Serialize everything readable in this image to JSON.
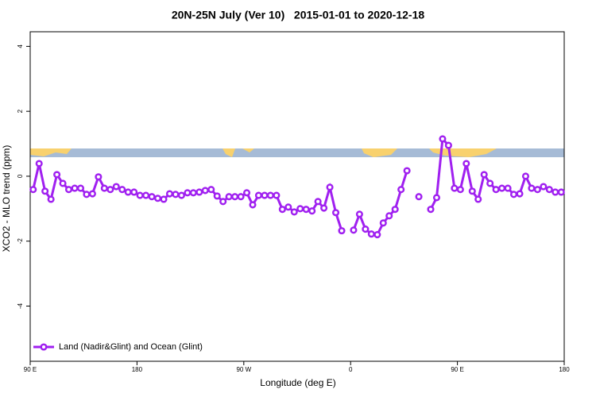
{
  "chart_data": {
    "type": "line",
    "title": "20N-25N July (Ver 10)   2015-01-01 to 2020-12-18",
    "x_label": "Longitude (deg E)",
    "y_label": "XCO2 - MLO trend (ppm)",
    "xlim": [
      90,
      540
    ],
    "xticks": [
      {
        "value": 90,
        "label": "90 E"
      },
      180,
      {
        "value": 270,
        "label": "90 W"
      },
      {
        "value": 360,
        "label": "0"
      },
      {
        "value": 450,
        "label": "90 E"
      },
      {
        "value": 540,
        "label": "180"
      }
    ],
    "ylim": [
      -5.7,
      4.45
    ],
    "yticks": [
      -4,
      -2,
      0,
      2,
      4
    ],
    "legend": "bottom-left",
    "x": [
      92.5,
      97.5,
      102.5,
      107.5,
      112.5,
      117.5,
      122.5,
      127.5,
      132.5,
      137.5,
      142.5,
      147.5,
      152.5,
      157.5,
      162.5,
      167.5,
      172.5,
      177.5,
      182.5,
      187.5,
      192.5,
      197.5,
      202.5,
      207.5,
      212.5,
      217.5,
      222.5,
      227.5,
      232.5,
      237.5,
      242.5,
      247.5,
      252.5,
      257.5,
      262.5,
      267.5,
      272.5,
      277.5,
      282.5,
      287.5,
      292.5,
      297.5,
      302.5,
      307.5,
      312.5,
      317.5,
      322.5,
      327.5,
      332.5,
      337.5,
      342.5,
      347.5,
      352.5,
      357.5,
      362.5,
      367.5,
      372.5,
      377.5,
      382.5,
      387.5,
      392.5,
      397.5,
      402.5,
      407.5,
      412.5,
      417.5,
      422.5,
      427.5,
      432.5,
      437.5,
      442.5,
      447.5,
      452.5,
      457.5,
      462.5,
      467.5,
      472.5,
      477.5,
      482.5,
      487.5,
      492.5,
      497.5,
      502.5,
      507.5,
      512.5,
      517.5,
      522.5,
      527.5,
      532.5,
      537.5
    ],
    "series": [
      {
        "name": "Land (Nadir&Glint) and Ocean (Glint)",
        "color": "#a020f0",
        "values": [
          -0.41,
          0.39,
          -0.46,
          -0.71,
          0.05,
          -0.22,
          -0.41,
          -0.37,
          -0.37,
          -0.56,
          -0.54,
          -0.02,
          -0.37,
          -0.41,
          -0.32,
          -0.41,
          -0.49,
          -0.49,
          -0.59,
          -0.59,
          -0.63,
          -0.68,
          -0.71,
          -0.54,
          -0.56,
          -0.59,
          -0.51,
          -0.51,
          -0.49,
          -0.44,
          -0.41,
          -0.61,
          -0.78,
          -0.63,
          -0.63,
          -0.63,
          -0.51,
          -0.88,
          -0.59,
          -0.59,
          -0.59,
          -0.59,
          -1.02,
          -0.95,
          -1.1,
          -1.0,
          -1.02,
          -1.07,
          -0.78,
          -0.98,
          -0.34,
          -1.12,
          -1.68,
          null,
          -1.66,
          -1.17,
          -1.63,
          -1.78,
          -1.8,
          -1.44,
          -1.22,
          -1.02,
          -0.41,
          0.17,
          null,
          -0.63,
          null,
          -1.02,
          -0.66,
          1.15,
          0.95,
          -0.37,
          -0.41,
          0.39,
          -0.46,
          -0.71,
          0.05,
          -0.22,
          -0.41,
          -0.37,
          -0.37,
          -0.56,
          -0.54,
          0.0,
          -0.37,
          -0.41,
          -0.32,
          -0.41,
          -0.49,
          -0.49
        ]
      }
    ]
  }
}
